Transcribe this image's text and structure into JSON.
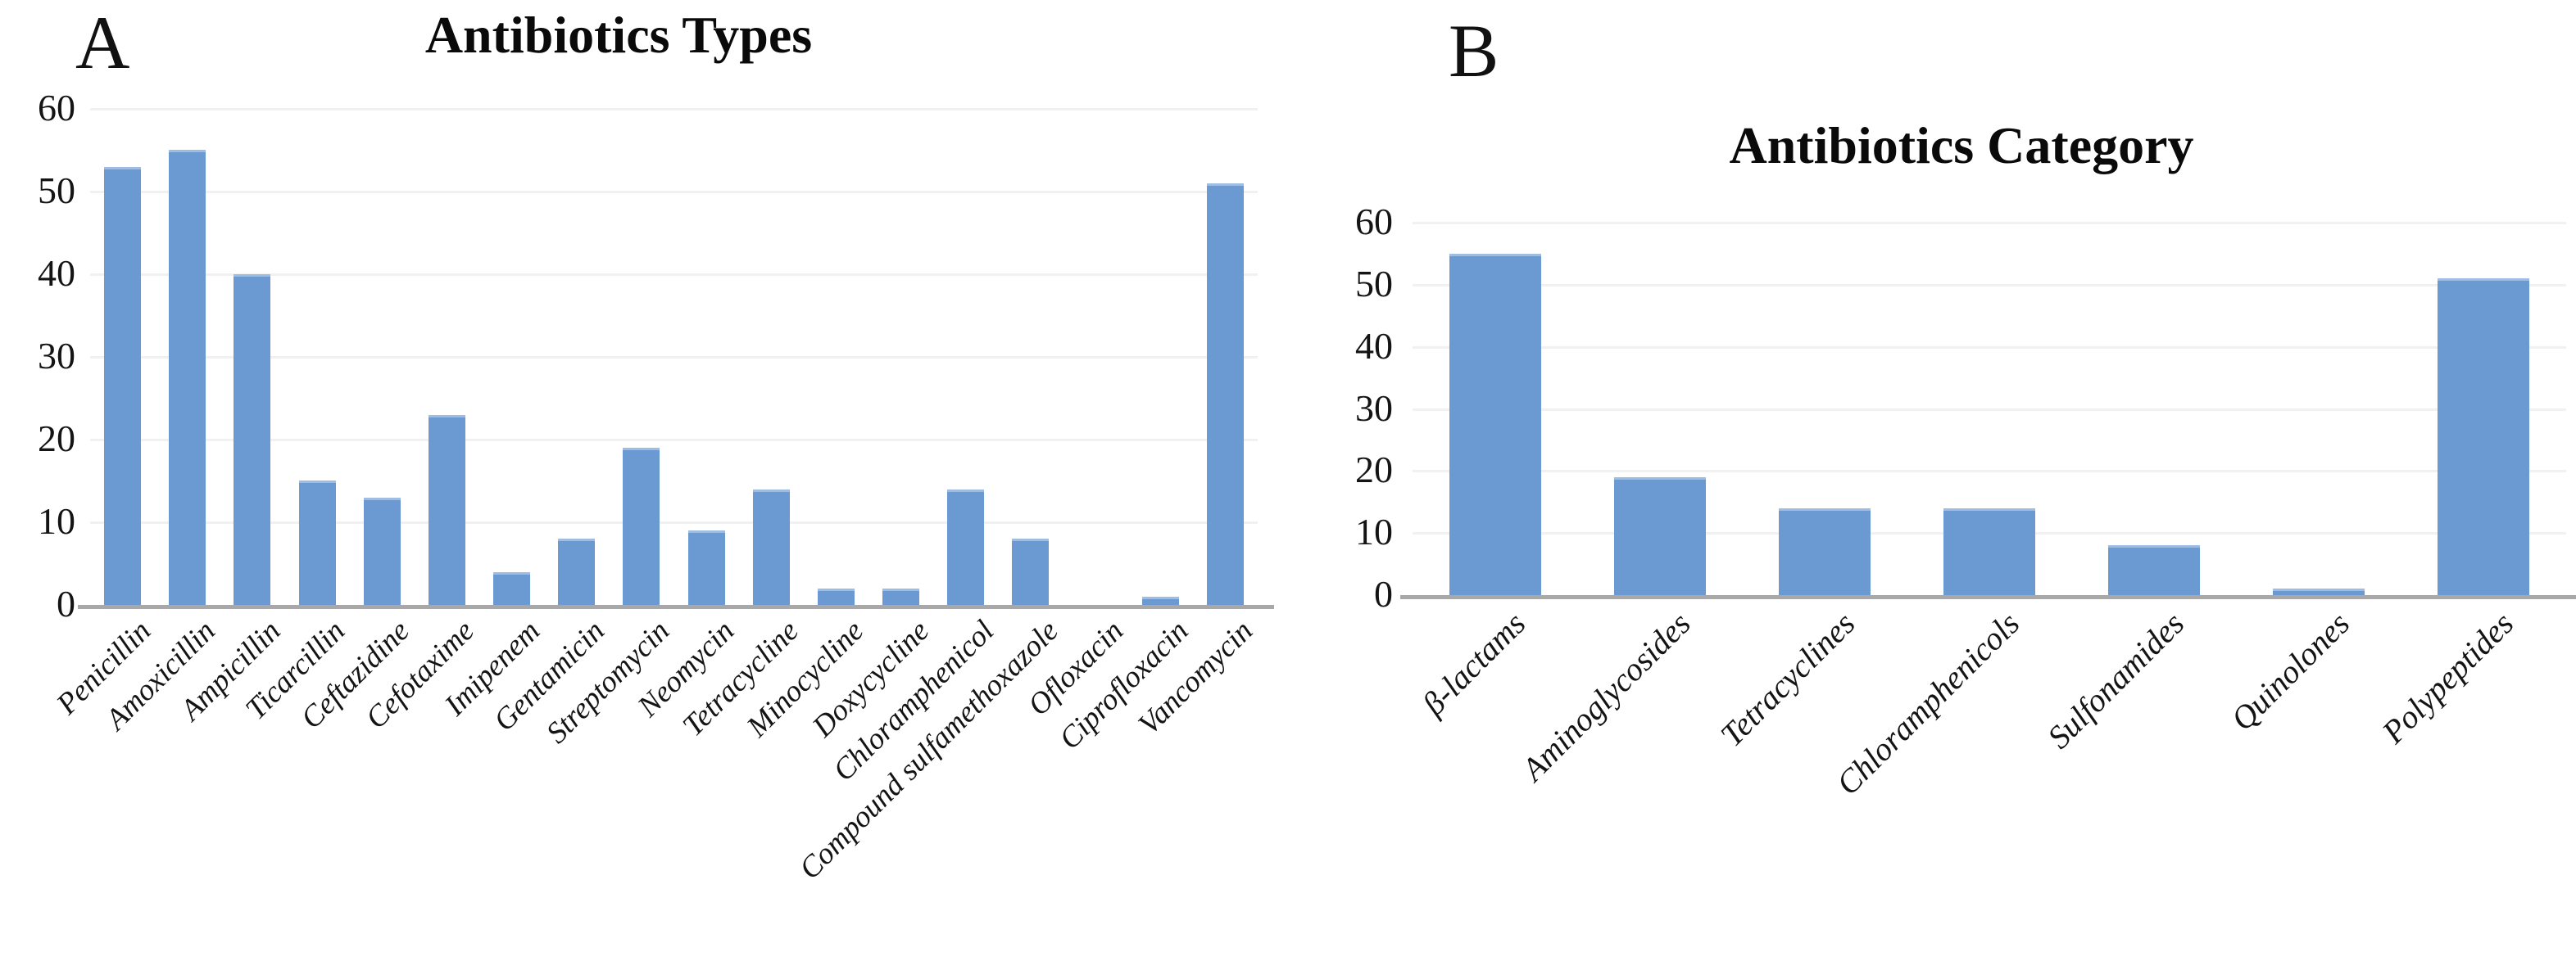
{
  "figure": {
    "background": "#ffffff",
    "panels": [
      {
        "letter": "A"
      },
      {
        "letter": "B"
      }
    ]
  },
  "colors": {
    "bar_fill": "#6b9ad3",
    "bar_edge": "#9dbde4",
    "gridline": "#f1f1f1",
    "axis_line": "#a8a8a8",
    "text": "#141414"
  },
  "chart_data": [
    {
      "type": "bar",
      "panel_label": "A",
      "title": "Antibiotics Types",
      "categories": [
        "Penicillin",
        "Amoxicillin",
        "Ampicillin",
        "Ticarcillin",
        "Ceftazidine",
        "Cefotaxime",
        "Imipenem",
        "Gentamicin",
        "Streptomycin",
        "Neomycin",
        "Tetracycline",
        "Minocycline",
        "Doxycycline",
        "Chloramphenicol",
        "Compound sulfamethoxazole",
        "Ofloxacin",
        "Ciprofloxacin",
        "Vancomycin"
      ],
      "values": [
        53,
        55,
        40,
        15,
        13,
        23,
        4,
        8,
        19,
        9,
        14,
        2,
        2,
        14,
        8,
        0,
        1,
        51
      ],
      "xlabel": "",
      "ylabel": "",
      "ylim": [
        0,
        60
      ],
      "ytick_step": 10,
      "yticks": [
        "0",
        "10",
        "20",
        "30",
        "40",
        "50",
        "60"
      ],
      "grid": "horizontal",
      "legend": "none",
      "x_label_rotation_deg": -45,
      "x_label_style": "italic"
    },
    {
      "type": "bar",
      "panel_label": "B",
      "title": "Antibiotics Category",
      "categories": [
        "β-lactams",
        "Aminoglycosides",
        "Tetracyclines",
        "Chloramphenicols",
        "Sulfonamides",
        "Quinolones",
        "Polypeptides"
      ],
      "values": [
        55,
        19,
        14,
        14,
        8,
        1,
        51
      ],
      "xlabel": "",
      "ylabel": "",
      "ylim": [
        0,
        60
      ],
      "ytick_step": 10,
      "yticks": [
        "0",
        "10",
        "20",
        "30",
        "40",
        "50",
        "60"
      ],
      "grid": "horizontal",
      "legend": "none",
      "x_label_rotation_deg": -45,
      "x_label_style": "italic"
    }
  ]
}
